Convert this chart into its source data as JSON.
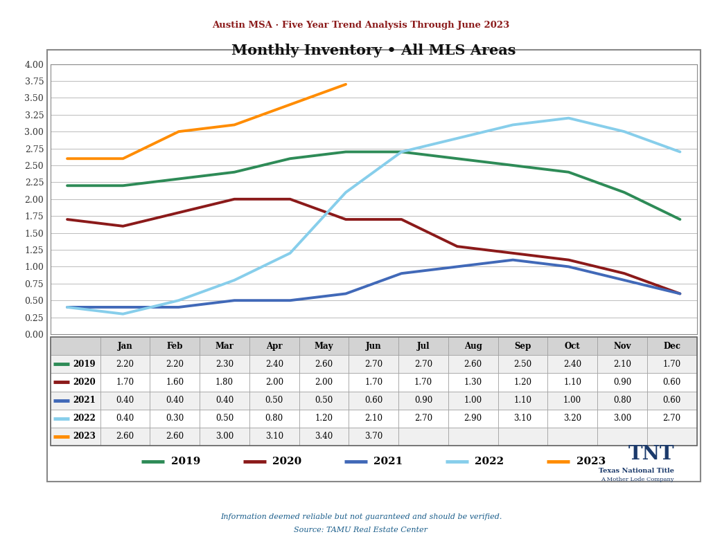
{
  "super_title": "Austin MSA · Five Year Trend Analysis Through June 2023",
  "chart_title": "Monthly Inventory • All MLS Areas",
  "months": [
    "Jan",
    "Feb",
    "Mar",
    "Apr",
    "May",
    "Jun",
    "Jul",
    "Aug",
    "Sep",
    "Oct",
    "Nov",
    "Dec"
  ],
  "series": {
    "2019": [
      2.2,
      2.2,
      2.3,
      2.4,
      2.6,
      2.7,
      2.7,
      2.6,
      2.5,
      2.4,
      2.1,
      1.7
    ],
    "2020": [
      1.7,
      1.6,
      1.8,
      2.0,
      2.0,
      1.7,
      1.7,
      1.3,
      1.2,
      1.1,
      0.9,
      0.6
    ],
    "2021": [
      0.4,
      0.4,
      0.4,
      0.5,
      0.5,
      0.6,
      0.9,
      1.0,
      1.1,
      1.0,
      0.8,
      0.6
    ],
    "2022": [
      0.4,
      0.3,
      0.5,
      0.8,
      1.2,
      2.1,
      2.7,
      2.9,
      3.1,
      3.2,
      3.0,
      2.7
    ],
    "2023": [
      2.6,
      2.6,
      3.0,
      3.1,
      3.4,
      3.7,
      null,
      null,
      null,
      null,
      null,
      null
    ]
  },
  "colors": {
    "2019": "#2E8B57",
    "2020": "#8B1A1A",
    "2021": "#4169B8",
    "2022": "#87CEEB",
    "2023": "#FF8C00"
  },
  "ylim": [
    0.0,
    4.0
  ],
  "yticks": [
    0.0,
    0.25,
    0.5,
    0.75,
    1.0,
    1.25,
    1.5,
    1.75,
    2.0,
    2.25,
    2.5,
    2.75,
    3.0,
    3.25,
    3.5,
    3.75,
    4.0
  ],
  "line_width": 2.8,
  "footer_line1": "Information deemed reliable but not guaranteed and should be verified.",
  "footer_line2": "Source: TAMU Real Estate Center",
  "outer_bg": "#FFFFFF",
  "super_title_color": "#8B1A1A",
  "footer_color": "#1B5E8B",
  "cell_bg_header": "#D3D3D3",
  "cell_bg_alt": "#F0F0F0",
  "cell_bg_white": "#FFFFFF",
  "cell_border": "#999999"
}
